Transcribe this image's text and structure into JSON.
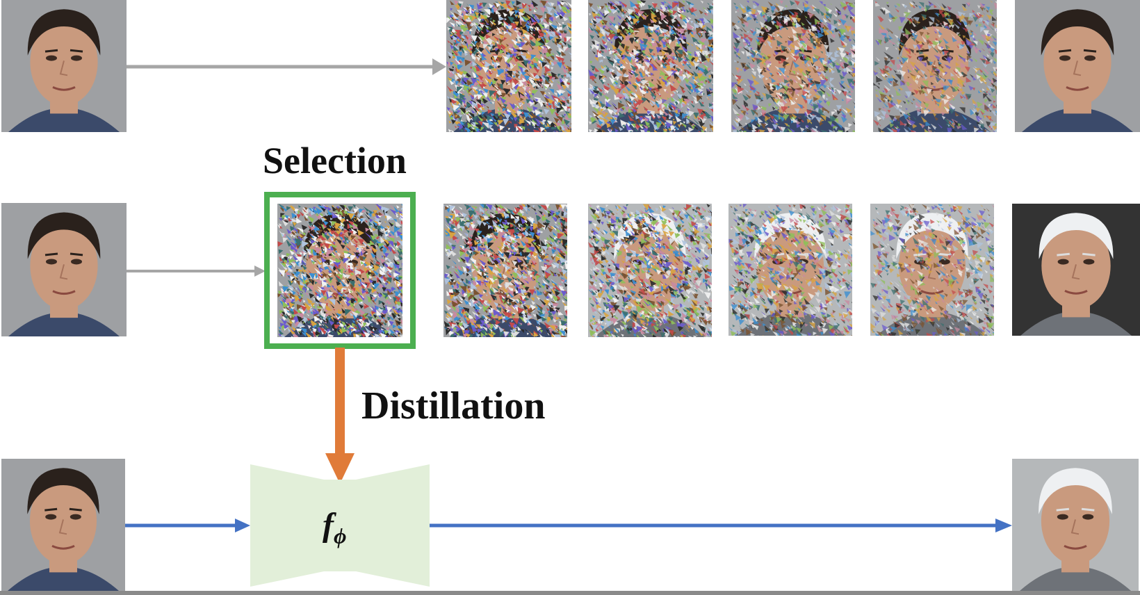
{
  "diagram": {
    "labels": {
      "selection": "Selection",
      "distillation": "Distillation",
      "model_base": "f",
      "model_sub": "ϕ"
    },
    "colors": {
      "gray_arrow": "#a6a6a6",
      "blue_arrow": "#4472c4",
      "orange_arrow": "#e07b39",
      "selection_box": "#4caf50",
      "model_fill": "#e2efd9"
    },
    "rows": [
      {
        "name": "row-1-generation",
        "source": "input-face-photo",
        "noise_levels": [
          0.95,
          0.85,
          0.55,
          0.4
        ],
        "output": "output-face-photo"
      },
      {
        "name": "row-2-selected-generation",
        "source": "input-face-photo",
        "selected_noise": 1.0,
        "noise_levels": [
          0.95,
          0.8,
          0.55,
          0.4
        ],
        "output": "output-white-hair-face-photo"
      },
      {
        "name": "row-3-distilled-model",
        "source": "input-face-photo",
        "output": "output-white-hair-face-photo"
      }
    ]
  }
}
